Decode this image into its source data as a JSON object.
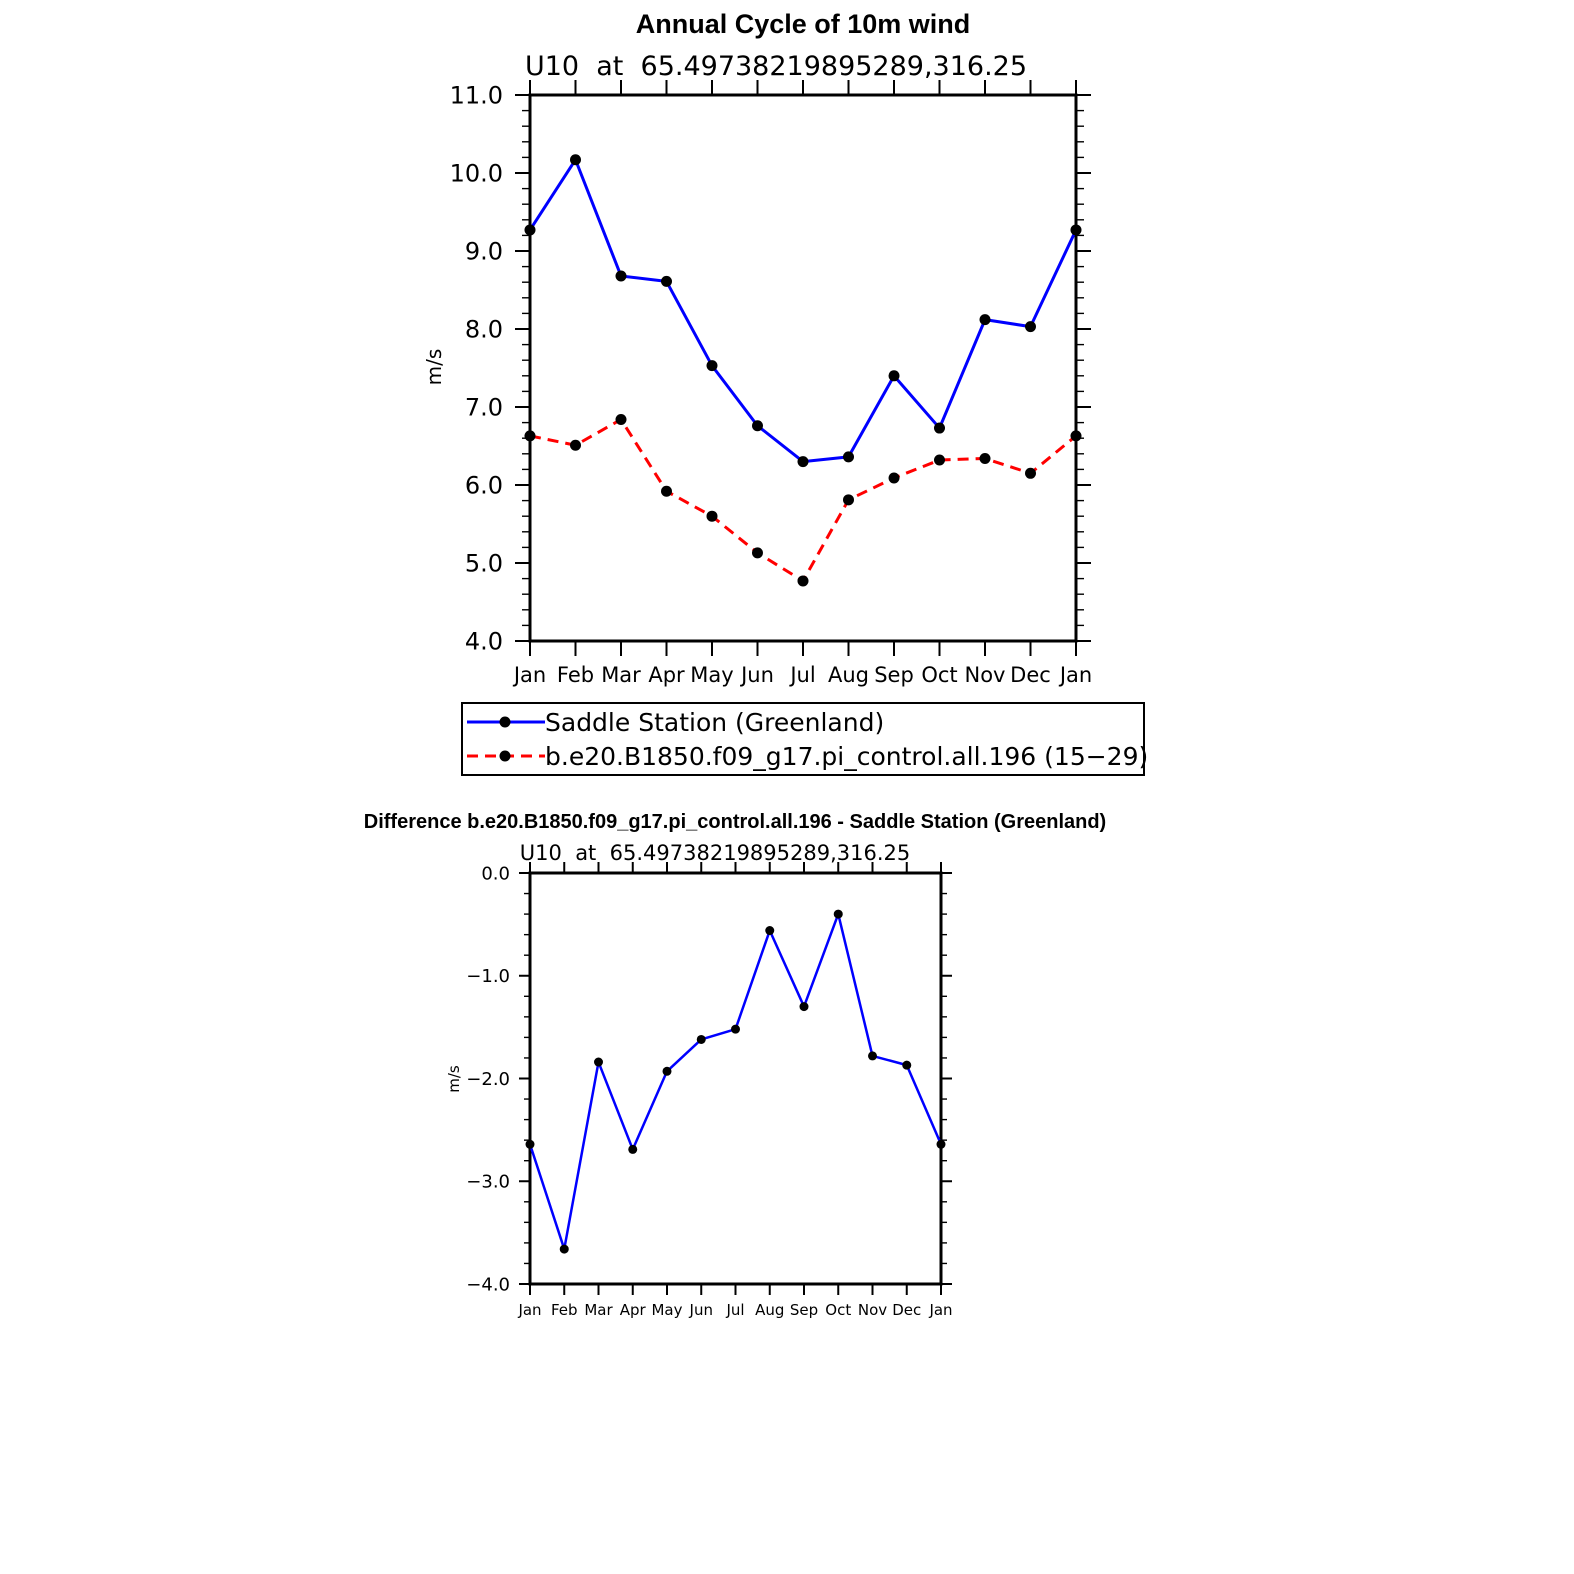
{
  "chart_data": [
    {
      "type": "line",
      "title": "Annual Cycle of 10m wind",
      "subtitle": "U10  at  65.49738219895289,316.25",
      "ylabel": "m/s",
      "xlabel": "",
      "categories": [
        "Jan",
        "Feb",
        "Mar",
        "Apr",
        "May",
        "Jun",
        "Jul",
        "Aug",
        "Sep",
        "Oct",
        "Nov",
        "Dec",
        "Jan"
      ],
      "ylim": [
        4.0,
        11.0
      ],
      "yticks": [
        "4.0",
        "5.0",
        "6.0",
        "7.0",
        "8.0",
        "9.0",
        "10.0",
        "11.0"
      ],
      "grid": false,
      "legend_position": "bottom",
      "series": [
        {
          "name": "Saddle Station (Greenland)",
          "color": "#0000ff",
          "dash": "solid",
          "values": [
            9.27,
            10.17,
            8.68,
            8.61,
            7.53,
            6.76,
            6.3,
            6.36,
            7.4,
            6.73,
            8.12,
            8.03,
            9.27
          ]
        },
        {
          "name": "b.e20.B1850.f09_g17.pi_control.all.196 (15−29)",
          "color": "#ff0000",
          "dash": "dashed",
          "values": [
            6.63,
            6.51,
            6.84,
            5.92,
            5.6,
            5.13,
            4.77,
            5.81,
            6.09,
            6.32,
            6.34,
            6.15,
            6.63
          ]
        }
      ]
    },
    {
      "type": "line",
      "title": "Difference b.e20.B1850.f09_g17.pi_control.all.196 - Saddle Station (Greenland)",
      "subtitle": "U10  at  65.49738219895289,316.25",
      "ylabel": "m/s",
      "xlabel": "",
      "categories": [
        "Jan",
        "Feb",
        "Mar",
        "Apr",
        "May",
        "Jun",
        "Jul",
        "Aug",
        "Sep",
        "Oct",
        "Nov",
        "Dec",
        "Jan"
      ],
      "ylim": [
        -4.0,
        0.0
      ],
      "yticks": [
        "−4.0",
        "−3.0",
        "−2.0",
        "−1.0",
        "0.0"
      ],
      "grid": false,
      "series": [
        {
          "name": "",
          "color": "#0000ff",
          "dash": "solid",
          "values": [
            -2.64,
            -3.66,
            -1.84,
            -2.69,
            -1.93,
            -1.62,
            -1.52,
            -0.56,
            -1.3,
            -0.4,
            -1.78,
            -1.87,
            -2.64
          ]
        }
      ]
    }
  ]
}
